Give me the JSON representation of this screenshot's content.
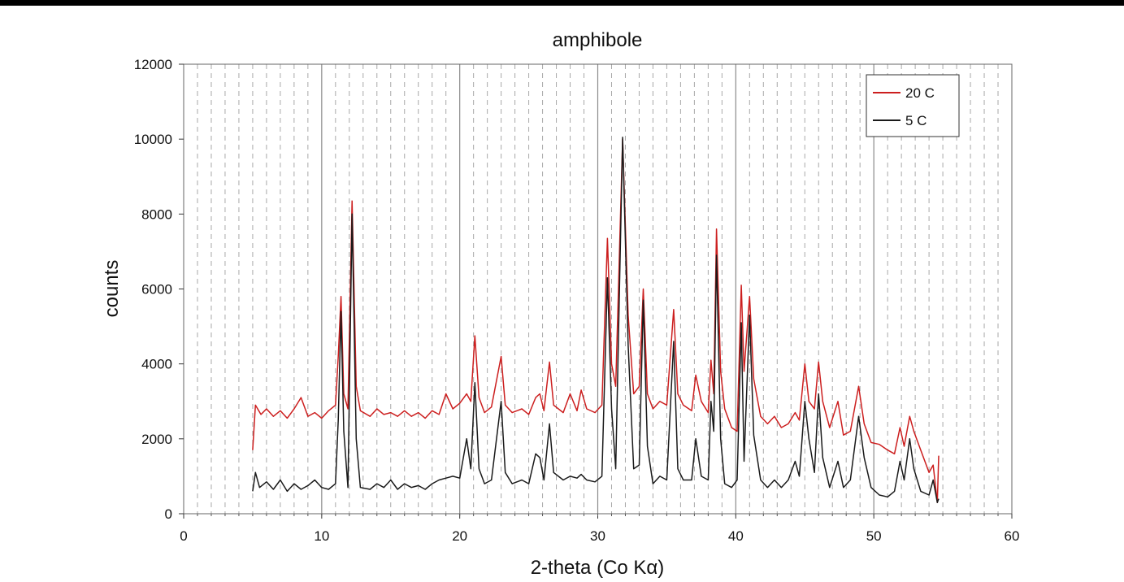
{
  "chart_data": {
    "type": "line",
    "title": "amphibole",
    "xlabel": "2-theta (Co Kα)",
    "ylabel": "counts",
    "xlim": [
      0,
      60
    ],
    "ylim": [
      0,
      12000
    ],
    "x_ticks": [
      "0",
      "10",
      "20",
      "30",
      "40",
      "50",
      "60"
    ],
    "y_ticks": [
      "0",
      "2000",
      "4000",
      "6000",
      "8000",
      "10000",
      "12000"
    ],
    "grid": {
      "major_x": true,
      "minor_x_dashed": true,
      "y": false
    },
    "legend": {
      "position": "top-right"
    },
    "series": [
      {
        "name": "20 C",
        "color": "#cc1f1f",
        "points": [
          [
            5.0,
            1700
          ],
          [
            5.2,
            2900
          ],
          [
            5.6,
            2650
          ],
          [
            6.0,
            2800
          ],
          [
            6.5,
            2600
          ],
          [
            7.0,
            2750
          ],
          [
            7.5,
            2550
          ],
          [
            8.0,
            2800
          ],
          [
            8.5,
            3100
          ],
          [
            9.0,
            2600
          ],
          [
            9.5,
            2700
          ],
          [
            10.0,
            2550
          ],
          [
            10.5,
            2750
          ],
          [
            11.0,
            2900
          ],
          [
            11.2,
            4200
          ],
          [
            11.4,
            5800
          ],
          [
            11.6,
            3200
          ],
          [
            11.9,
            2800
          ],
          [
            12.2,
            8350
          ],
          [
            12.5,
            3400
          ],
          [
            12.8,
            2750
          ],
          [
            13.5,
            2600
          ],
          [
            14.0,
            2800
          ],
          [
            14.5,
            2650
          ],
          [
            15.0,
            2700
          ],
          [
            15.5,
            2600
          ],
          [
            16.0,
            2750
          ],
          [
            16.5,
            2600
          ],
          [
            17.0,
            2700
          ],
          [
            17.5,
            2550
          ],
          [
            18.0,
            2750
          ],
          [
            18.5,
            2650
          ],
          [
            19.0,
            3200
          ],
          [
            19.5,
            2800
          ],
          [
            20.0,
            2950
          ],
          [
            20.5,
            3200
          ],
          [
            20.8,
            3000
          ],
          [
            21.1,
            4750
          ],
          [
            21.4,
            3100
          ],
          [
            21.8,
            2700
          ],
          [
            22.3,
            2850
          ],
          [
            23.0,
            4200
          ],
          [
            23.3,
            2900
          ],
          [
            23.8,
            2700
          ],
          [
            24.5,
            2800
          ],
          [
            25.0,
            2650
          ],
          [
            25.5,
            3100
          ],
          [
            25.8,
            3200
          ],
          [
            26.1,
            2750
          ],
          [
            26.5,
            4050
          ],
          [
            26.8,
            2900
          ],
          [
            27.5,
            2700
          ],
          [
            28.0,
            3200
          ],
          [
            28.5,
            2750
          ],
          [
            28.8,
            3300
          ],
          [
            29.2,
            2800
          ],
          [
            29.8,
            2700
          ],
          [
            30.3,
            2900
          ],
          [
            30.7,
            7350
          ],
          [
            31.0,
            4000
          ],
          [
            31.3,
            3400
          ],
          [
            31.8,
            10000
          ],
          [
            32.2,
            5300
          ],
          [
            32.6,
            3200
          ],
          [
            33.0,
            3400
          ],
          [
            33.3,
            6000
          ],
          [
            33.6,
            3200
          ],
          [
            34.0,
            2800
          ],
          [
            34.5,
            3000
          ],
          [
            35.0,
            2900
          ],
          [
            35.5,
            5450
          ],
          [
            35.8,
            3200
          ],
          [
            36.2,
            2900
          ],
          [
            36.8,
            2750
          ],
          [
            37.1,
            3700
          ],
          [
            37.5,
            3000
          ],
          [
            38.0,
            2700
          ],
          [
            38.2,
            4100
          ],
          [
            38.4,
            3200
          ],
          [
            38.6,
            7600
          ],
          [
            38.9,
            3800
          ],
          [
            39.2,
            2800
          ],
          [
            39.7,
            2300
          ],
          [
            40.1,
            2200
          ],
          [
            40.4,
            6100
          ],
          [
            40.6,
            3800
          ],
          [
            41.0,
            5800
          ],
          [
            41.3,
            3600
          ],
          [
            41.8,
            2600
          ],
          [
            42.3,
            2400
          ],
          [
            42.8,
            2600
          ],
          [
            43.3,
            2300
          ],
          [
            43.8,
            2400
          ],
          [
            44.3,
            2700
          ],
          [
            44.6,
            2500
          ],
          [
            45.0,
            4000
          ],
          [
            45.3,
            3000
          ],
          [
            45.7,
            2800
          ],
          [
            46.0,
            4050
          ],
          [
            46.3,
            3000
          ],
          [
            46.8,
            2300
          ],
          [
            47.4,
            3000
          ],
          [
            47.8,
            2100
          ],
          [
            48.3,
            2200
          ],
          [
            48.9,
            3400
          ],
          [
            49.3,
            2400
          ],
          [
            49.8,
            1900
          ],
          [
            50.4,
            1850
          ],
          [
            51.0,
            1700
          ],
          [
            51.5,
            1600
          ],
          [
            51.9,
            2300
          ],
          [
            52.2,
            1800
          ],
          [
            52.6,
            2600
          ],
          [
            52.9,
            2200
          ],
          [
            53.4,
            1700
          ],
          [
            54.0,
            1100
          ],
          [
            54.3,
            1300
          ],
          [
            54.6,
            300
          ],
          [
            54.7,
            1550
          ]
        ]
      },
      {
        "name": "5 C",
        "color": "#1a1a1a",
        "points": [
          [
            5.0,
            600
          ],
          [
            5.2,
            1100
          ],
          [
            5.5,
            700
          ],
          [
            6.0,
            850
          ],
          [
            6.5,
            650
          ],
          [
            7.0,
            900
          ],
          [
            7.5,
            600
          ],
          [
            8.0,
            800
          ],
          [
            8.5,
            650
          ],
          [
            9.0,
            750
          ],
          [
            9.5,
            900
          ],
          [
            10.0,
            700
          ],
          [
            10.5,
            650
          ],
          [
            11.0,
            800
          ],
          [
            11.2,
            2500
          ],
          [
            11.4,
            5400
          ],
          [
            11.6,
            2200
          ],
          [
            11.9,
            700
          ],
          [
            12.2,
            8000
          ],
          [
            12.5,
            2000
          ],
          [
            12.8,
            700
          ],
          [
            13.5,
            650
          ],
          [
            14.0,
            800
          ],
          [
            14.5,
            700
          ],
          [
            15.0,
            900
          ],
          [
            15.5,
            650
          ],
          [
            16.0,
            800
          ],
          [
            16.5,
            700
          ],
          [
            17.0,
            750
          ],
          [
            17.5,
            650
          ],
          [
            18.0,
            800
          ],
          [
            18.5,
            900
          ],
          [
            19.0,
            950
          ],
          [
            19.5,
            1000
          ],
          [
            20.0,
            950
          ],
          [
            20.5,
            2000
          ],
          [
            20.8,
            1200
          ],
          [
            21.1,
            3500
          ],
          [
            21.4,
            1200
          ],
          [
            21.8,
            800
          ],
          [
            22.3,
            900
          ],
          [
            23.0,
            3000
          ],
          [
            23.3,
            1100
          ],
          [
            23.8,
            800
          ],
          [
            24.5,
            900
          ],
          [
            25.0,
            800
          ],
          [
            25.5,
            1600
          ],
          [
            25.8,
            1500
          ],
          [
            26.1,
            900
          ],
          [
            26.5,
            2400
          ],
          [
            26.8,
            1100
          ],
          [
            27.5,
            900
          ],
          [
            28.0,
            1000
          ],
          [
            28.5,
            950
          ],
          [
            28.8,
            1050
          ],
          [
            29.2,
            900
          ],
          [
            29.8,
            850
          ],
          [
            30.3,
            1000
          ],
          [
            30.7,
            6300
          ],
          [
            31.0,
            2800
          ],
          [
            31.3,
            1200
          ],
          [
            31.8,
            10050
          ],
          [
            32.2,
            4500
          ],
          [
            32.6,
            1200
          ],
          [
            33.0,
            1300
          ],
          [
            33.3,
            5700
          ],
          [
            33.6,
            1800
          ],
          [
            34.0,
            800
          ],
          [
            34.5,
            1000
          ],
          [
            35.0,
            900
          ],
          [
            35.5,
            4600
          ],
          [
            35.8,
            1200
          ],
          [
            36.2,
            900
          ],
          [
            36.8,
            900
          ],
          [
            37.1,
            2000
          ],
          [
            37.5,
            1000
          ],
          [
            38.0,
            900
          ],
          [
            38.2,
            3000
          ],
          [
            38.4,
            2200
          ],
          [
            38.6,
            6900
          ],
          [
            38.9,
            2000
          ],
          [
            39.2,
            800
          ],
          [
            39.7,
            700
          ],
          [
            40.1,
            900
          ],
          [
            40.4,
            5100
          ],
          [
            40.6,
            1400
          ],
          [
            41.0,
            5300
          ],
          [
            41.3,
            2100
          ],
          [
            41.8,
            900
          ],
          [
            42.3,
            700
          ],
          [
            42.8,
            900
          ],
          [
            43.3,
            700
          ],
          [
            43.8,
            900
          ],
          [
            44.3,
            1400
          ],
          [
            44.6,
            1000
          ],
          [
            45.0,
            3000
          ],
          [
            45.3,
            2000
          ],
          [
            45.7,
            1100
          ],
          [
            46.0,
            3200
          ],
          [
            46.3,
            1500
          ],
          [
            46.8,
            700
          ],
          [
            47.4,
            1400
          ],
          [
            47.8,
            700
          ],
          [
            48.3,
            900
          ],
          [
            48.9,
            2600
          ],
          [
            49.3,
            1500
          ],
          [
            49.8,
            700
          ],
          [
            50.4,
            500
          ],
          [
            51.0,
            450
          ],
          [
            51.5,
            600
          ],
          [
            51.9,
            1400
          ],
          [
            52.2,
            900
          ],
          [
            52.6,
            2000
          ],
          [
            52.9,
            1200
          ],
          [
            53.4,
            600
          ],
          [
            54.0,
            500
          ],
          [
            54.3,
            900
          ],
          [
            54.6,
            300
          ],
          [
            54.7,
            400
          ]
        ]
      }
    ]
  }
}
